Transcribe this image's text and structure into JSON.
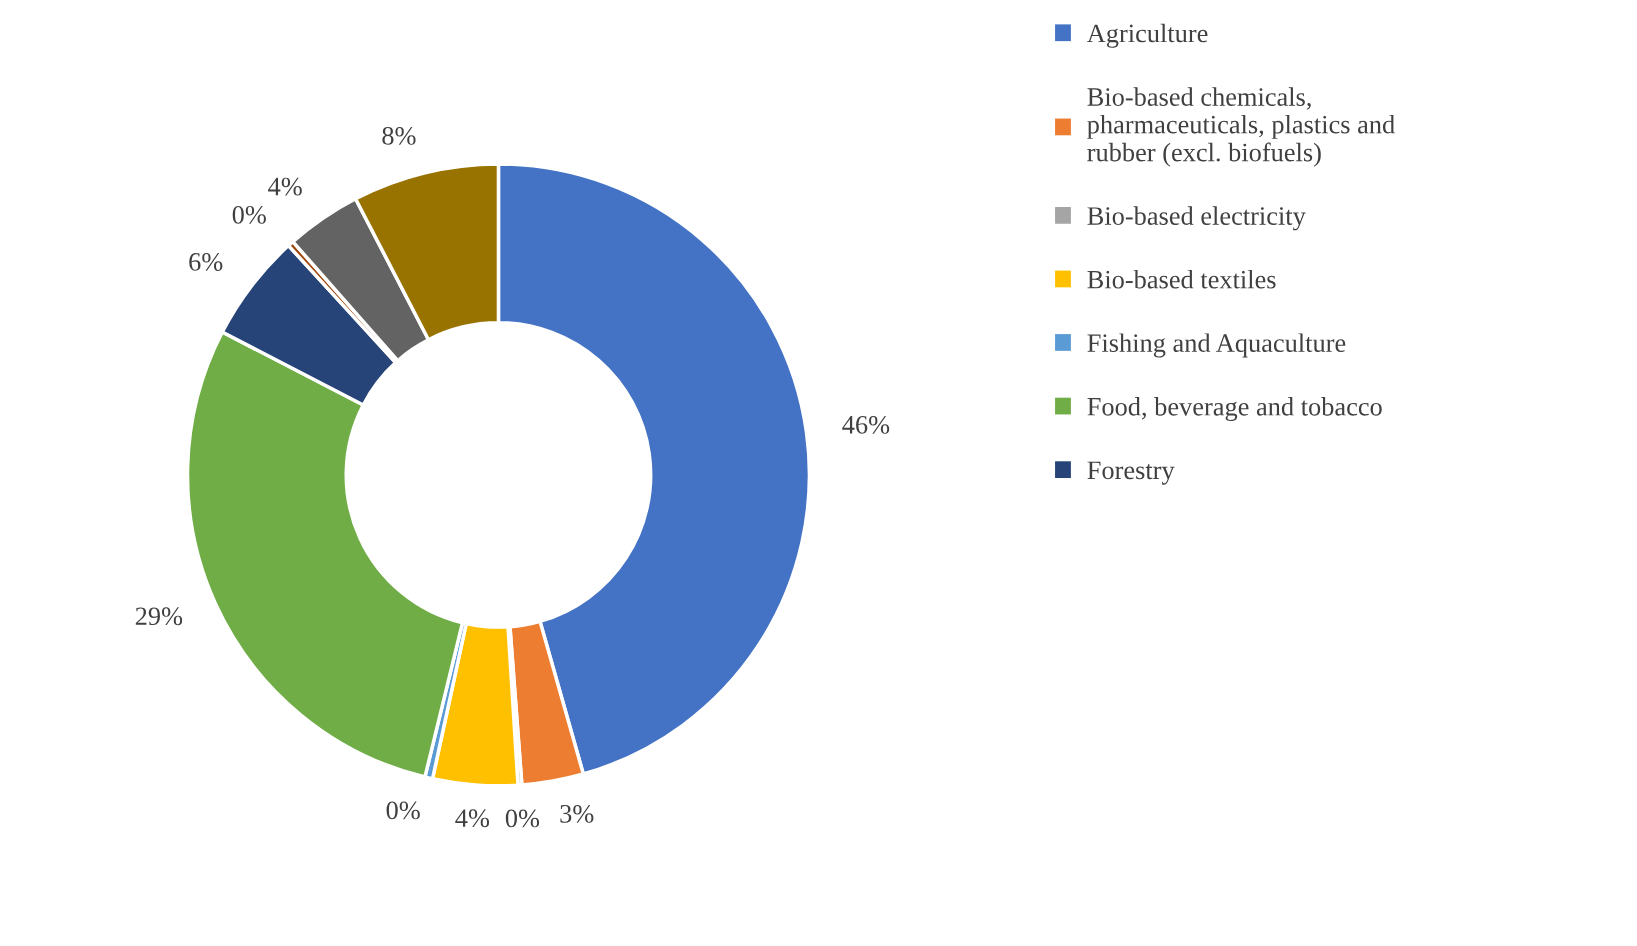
{
  "chart_data": {
    "type": "donut",
    "categories": [
      "Agriculture",
      "Bio-based chemicals, pharmaceuticals, plastics and rubber (excl. biofuels)",
      "Bio-based electricity",
      "Bio-based textiles",
      "Fishing and Aquaculture",
      "Food, beverage and tobacco",
      "Forestry",
      null,
      null,
      null
    ],
    "values": [
      45.6,
      3.2,
      0.2,
      4.4,
      0.4,
      28.8,
      5.6,
      0.3,
      3.9,
      7.6
    ],
    "value_labels": [
      "46%",
      "3%",
      "0%",
      "4%",
      "0%",
      "29%",
      "6%",
      "0%",
      "4%",
      "8%"
    ],
    "colors": [
      "#4472c4",
      "#ed7d31",
      "#a5a5a5",
      "#ffc000",
      "#5b9bd5",
      "#70ad47",
      "#264478",
      "#9e480e",
      "#636363",
      "#997300"
    ],
    "legend": "top right"
  }
}
